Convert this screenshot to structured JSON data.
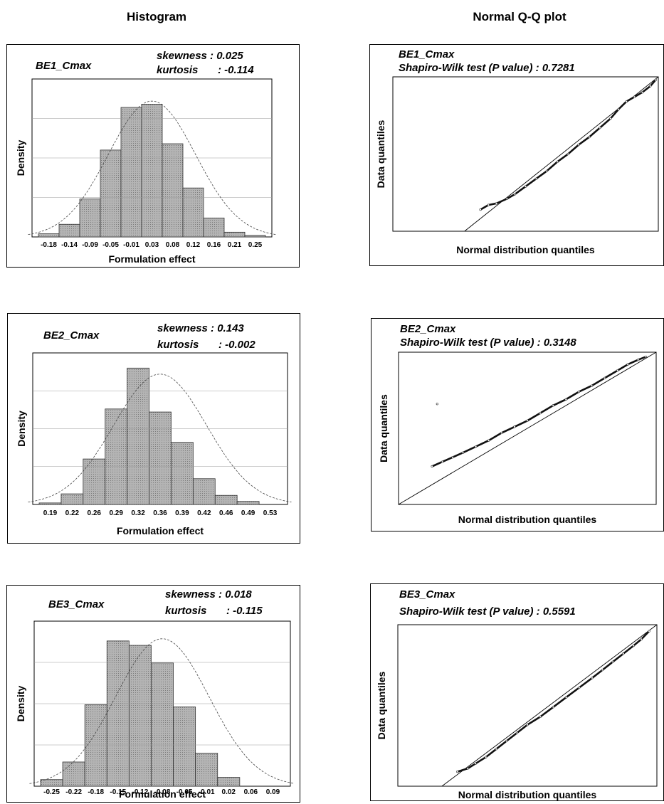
{
  "headings": {
    "left": "Histogram",
    "right": "Normal Q-Q plot"
  },
  "chart_data": [
    {
      "type": "bar",
      "panel": "histogram",
      "label": "BE1_Cmax",
      "skewness_text": "skewness : 0.025",
      "kurtosis_label": "kurtosis",
      "kurtosis_value": ": -0.114",
      "xlabel": "Formulation effect",
      "ylabel": "Density",
      "categories": [
        "-0.18",
        "-0.14",
        "-0.09",
        "-0.05",
        "-0.01",
        "0.03",
        "0.08",
        "0.12",
        "0.16",
        "0.21",
        "0.25"
      ],
      "values": [
        0.02,
        0.08,
        0.24,
        0.55,
        0.82,
        0.84,
        0.59,
        0.31,
        0.12,
        0.03,
        0.01
      ],
      "curve_peak": 0.86,
      "ylim": [
        0,
        1
      ]
    },
    {
      "type": "bar",
      "panel": "histogram",
      "label": "BE2_Cmax",
      "skewness_text": "skewness : 0.143",
      "kurtosis_label": "kurtosis",
      "kurtosis_value": ": -0.002",
      "xlabel": "Formulation effect",
      "ylabel": "Density",
      "categories": [
        "0.19",
        "0.22",
        "0.26",
        "0.29",
        "0.32",
        "0.36",
        "0.39",
        "0.42",
        "0.46",
        "0.49",
        "0.53"
      ],
      "values": [
        0.01,
        0.07,
        0.3,
        0.63,
        0.9,
        0.61,
        0.41,
        0.17,
        0.06,
        0.02,
        0.0
      ],
      "curve_peak": 0.86,
      "ylim": [
        0,
        1
      ]
    },
    {
      "type": "bar",
      "panel": "histogram",
      "label": "BE3_Cmax",
      "skewness_text": "skewness : 0.018",
      "kurtosis_label": "kurtosis",
      "kurtosis_value": ": -0.115",
      "xlabel": "Formulation effect",
      "ylabel": "Density",
      "categories": [
        "-0.25",
        "-0.22",
        "-0.18",
        "-0.15",
        "-0.12",
        "-0.08",
        "-0.05",
        "-0.01",
        "0.02",
        "0.06",
        "0.09"
      ],
      "values": [
        0.03,
        0.11,
        0.37,
        0.66,
        0.64,
        0.56,
        0.36,
        0.15,
        0.04,
        0.0,
        0.0
      ],
      "curve_peak": 0.67,
      "ylim": [
        0,
        0.75
      ]
    },
    {
      "type": "scatter",
      "panel": "qq",
      "label": "BE1_Cmax",
      "test_text": "Shapiro-Wilk test (P value) : 0.7281",
      "xlabel": "Normal distribution quantiles",
      "ylabel": "Data quantiles",
      "reference_line": [
        [
          0.27,
          0.0
        ],
        [
          1.0,
          1.0
        ]
      ],
      "points": [
        [
          0.33,
          0.14
        ],
        [
          0.36,
          0.17
        ],
        [
          0.39,
          0.18
        ],
        [
          0.43,
          0.21
        ],
        [
          0.46,
          0.24
        ],
        [
          0.5,
          0.29
        ],
        [
          0.54,
          0.34
        ],
        [
          0.58,
          0.39
        ],
        [
          0.62,
          0.45
        ],
        [
          0.66,
          0.5
        ],
        [
          0.7,
          0.56
        ],
        [
          0.74,
          0.61
        ],
        [
          0.78,
          0.67
        ],
        [
          0.82,
          0.73
        ],
        [
          0.85,
          0.79
        ],
        [
          0.88,
          0.84
        ],
        [
          0.91,
          0.87
        ],
        [
          0.94,
          0.9
        ],
        [
          0.97,
          0.94
        ],
        [
          0.99,
          0.98
        ]
      ]
    },
    {
      "type": "scatter",
      "panel": "qq",
      "label": "BE2_Cmax",
      "test_text": "Shapiro-Wilk test (P value) : 0.3148",
      "xlabel": "Normal distribution quantiles",
      "ylabel": "Data quantiles",
      "reference_line": [
        [
          0.0,
          0.0
        ],
        [
          1.0,
          1.0
        ]
      ],
      "points": [
        [
          0.13,
          0.25
        ],
        [
          0.17,
          0.28
        ],
        [
          0.21,
          0.31
        ],
        [
          0.25,
          0.34
        ],
        [
          0.3,
          0.38
        ],
        [
          0.35,
          0.42
        ],
        [
          0.4,
          0.47
        ],
        [
          0.45,
          0.51
        ],
        [
          0.5,
          0.55
        ],
        [
          0.55,
          0.6
        ],
        [
          0.6,
          0.65
        ],
        [
          0.65,
          0.69
        ],
        [
          0.7,
          0.74
        ],
        [
          0.75,
          0.78
        ],
        [
          0.8,
          0.83
        ],
        [
          0.85,
          0.88
        ],
        [
          0.89,
          0.92
        ],
        [
          0.93,
          0.95
        ],
        [
          0.96,
          0.97
        ],
        [
          0.15,
          0.66
        ]
      ]
    },
    {
      "type": "scatter",
      "panel": "qq",
      "label": "BE3_Cmax",
      "test_text": "Shapiro-Wilk test (P value) : 0.5591",
      "xlabel": "Normal distribution quantiles",
      "ylabel": "Data quantiles",
      "reference_line": [
        [
          0.17,
          0.0
        ],
        [
          1.0,
          1.0
        ]
      ],
      "points": [
        [
          0.23,
          0.09
        ],
        [
          0.27,
          0.11
        ],
        [
          0.3,
          0.14
        ],
        [
          0.34,
          0.18
        ],
        [
          0.38,
          0.23
        ],
        [
          0.42,
          0.28
        ],
        [
          0.46,
          0.33
        ],
        [
          0.5,
          0.38
        ],
        [
          0.55,
          0.43
        ],
        [
          0.6,
          0.49
        ],
        [
          0.65,
          0.55
        ],
        [
          0.7,
          0.61
        ],
        [
          0.75,
          0.67
        ],
        [
          0.79,
          0.72
        ],
        [
          0.83,
          0.77
        ],
        [
          0.87,
          0.82
        ],
        [
          0.91,
          0.87
        ],
        [
          0.94,
          0.91
        ],
        [
          0.97,
          0.96
        ]
      ]
    }
  ]
}
